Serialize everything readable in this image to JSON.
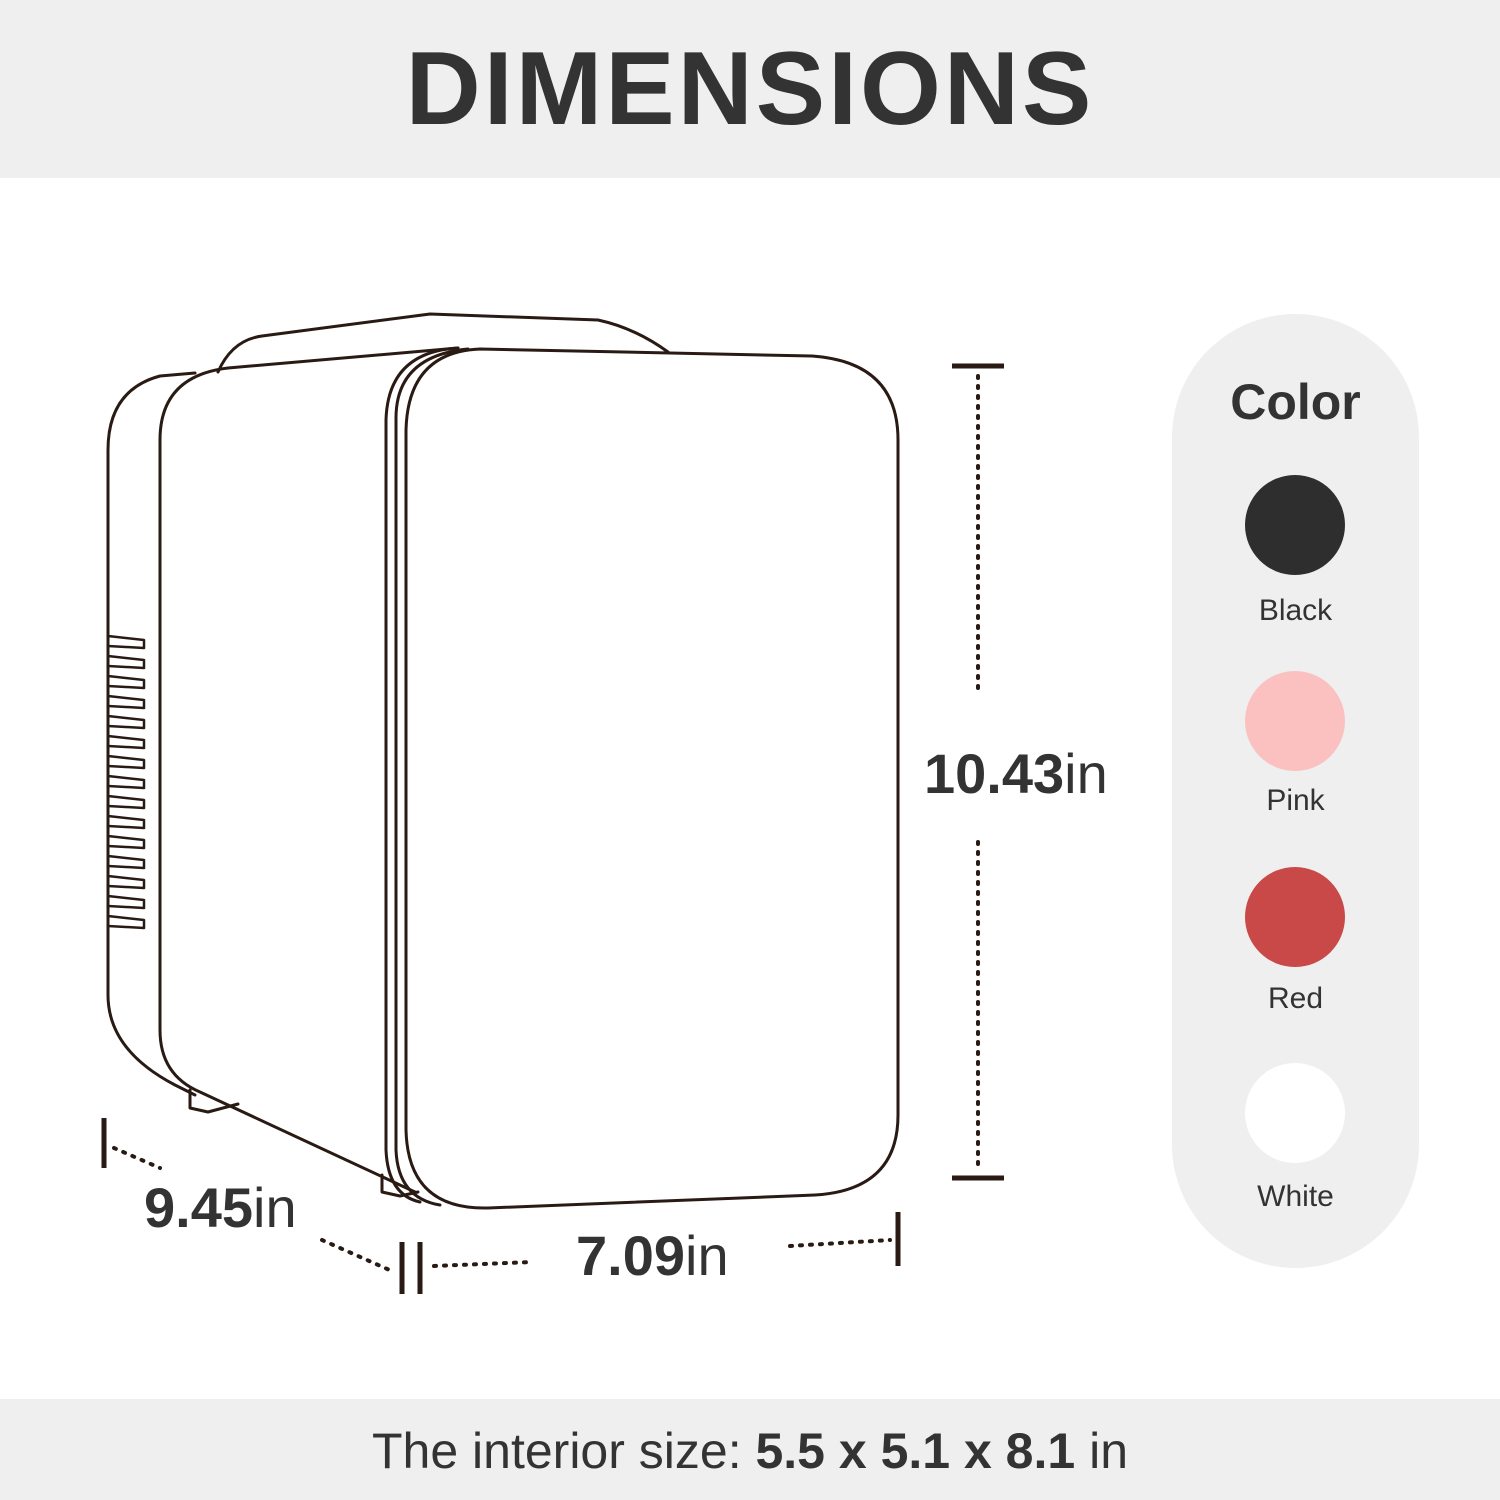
{
  "title": "DIMENSIONS",
  "dimensions": {
    "height": {
      "value": "10.43",
      "unit": "in"
    },
    "depth": {
      "value": "9.45",
      "unit": "in"
    },
    "width": {
      "value": "7.09",
      "unit": "in"
    }
  },
  "colors_panel": {
    "heading": "Color",
    "options": [
      {
        "label": "Black",
        "hex": "#2e2e2e"
      },
      {
        "label": "Pink",
        "hex": "#fbc1c1"
      },
      {
        "label": "Red",
        "hex": "#c94848"
      },
      {
        "label": "White",
        "hex": "#ffffff"
      }
    ]
  },
  "footer": {
    "prefix": "The interior size: ",
    "dims": "5.5 x 5.1 x 8.1",
    "suffix": " in"
  },
  "line_color": "#2a1a14"
}
